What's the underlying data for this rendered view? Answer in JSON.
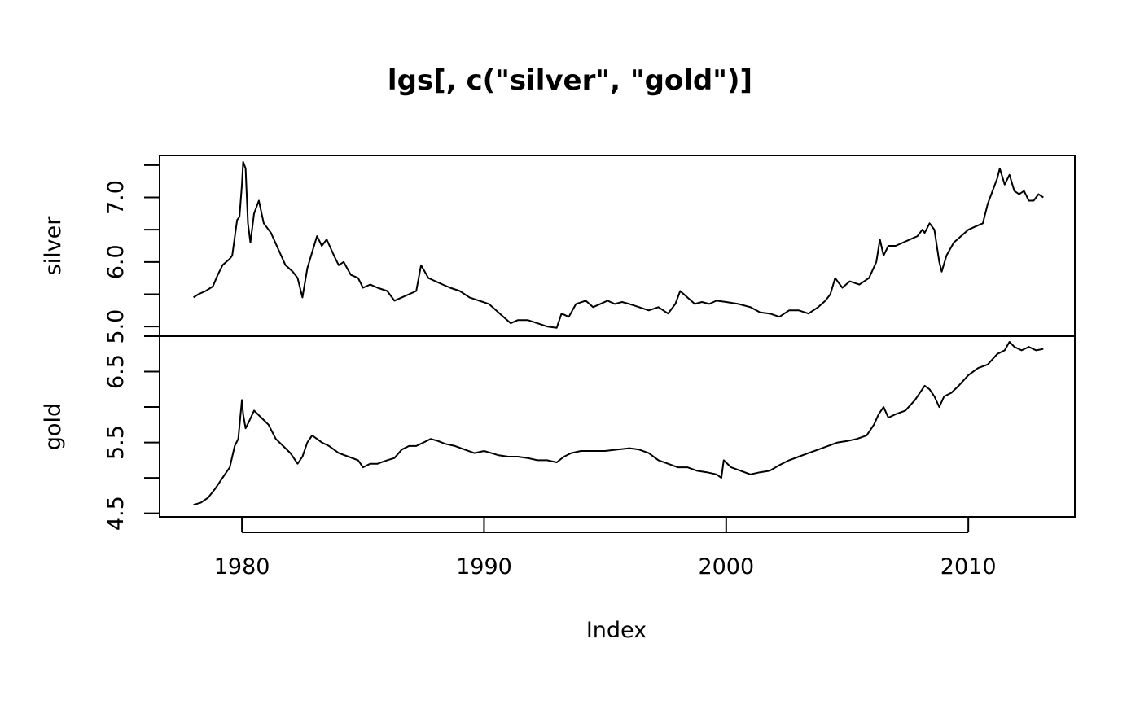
{
  "chart_data": {
    "type": "line",
    "title": "lgs[, c(\"silver\", \"gold\")]",
    "xlabel": "Index",
    "xlim": [
      1976.6,
      2014.4
    ],
    "x_ticks": [
      1980,
      1990,
      2000,
      2010
    ],
    "x_tick_labels": [
      "1980",
      "1990",
      "2000",
      "2010"
    ],
    "series": [
      {
        "name": "silver",
        "ylabel": "silver",
        "ylim": [
          4.85,
          7.65
        ],
        "y_ticks": [
          5.0,
          5.5,
          6.0,
          6.5,
          7.0,
          7.5
        ],
        "y_tick_labels": [
          "5.0",
          "6.0",
          "7.0"
        ],
        "x": [
          1978.0,
          1978.2,
          1978.5,
          1978.8,
          1979.0,
          1979.2,
          1979.5,
          1979.6,
          1979.8,
          1979.9,
          1980.0,
          1980.05,
          1980.15,
          1980.25,
          1980.35,
          1980.5,
          1980.7,
          1980.9,
          1981.2,
          1981.5,
          1981.8,
          1982.1,
          1982.3,
          1982.5,
          1982.7,
          1982.9,
          1983.1,
          1983.3,
          1983.5,
          1983.8,
          1984.0,
          1984.2,
          1984.5,
          1984.8,
          1985.0,
          1985.3,
          1985.6,
          1986.0,
          1986.3,
          1986.6,
          1986.9,
          1987.2,
          1987.4,
          1987.7,
          1988.0,
          1988.3,
          1988.6,
          1989.0,
          1989.4,
          1989.8,
          1990.2,
          1990.5,
          1990.8,
          1991.1,
          1991.4,
          1991.8,
          1992.2,
          1992.6,
          1993.0,
          1993.2,
          1993.5,
          1993.8,
          1994.2,
          1994.5,
          1994.8,
          1995.1,
          1995.4,
          1995.7,
          1996.0,
          1996.4,
          1996.8,
          1997.2,
          1997.6,
          1997.9,
          1998.1,
          1998.4,
          1998.7,
          1999.0,
          1999.3,
          1999.6,
          2000.0,
          2000.5,
          2001.0,
          2001.4,
          2001.8,
          2002.2,
          2002.6,
          2003.0,
          2003.4,
          2003.8,
          2004.1,
          2004.3,
          2004.5,
          2004.8,
          2005.1,
          2005.5,
          2005.9,
          2006.2,
          2006.35,
          2006.5,
          2006.7,
          2007.0,
          2007.3,
          2007.6,
          2007.9,
          2008.1,
          2008.2,
          2008.4,
          2008.6,
          2008.8,
          2008.9,
          2009.1,
          2009.4,
          2009.7,
          2010.0,
          2010.3,
          2010.6,
          2010.8,
          2011.0,
          2011.2,
          2011.3,
          2011.5,
          2011.7,
          2011.9,
          2012.1,
          2012.3,
          2012.5,
          2012.7,
          2012.9,
          2013.1
        ],
        "values": [
          5.45,
          5.5,
          5.55,
          5.62,
          5.8,
          5.95,
          6.05,
          6.1,
          6.65,
          6.7,
          7.2,
          7.55,
          7.45,
          6.6,
          6.3,
          6.75,
          6.95,
          6.6,
          6.45,
          6.2,
          5.95,
          5.85,
          5.75,
          5.45,
          5.9,
          6.15,
          6.4,
          6.25,
          6.35,
          6.1,
          5.95,
          6.0,
          5.8,
          5.75,
          5.6,
          5.65,
          5.6,
          5.55,
          5.4,
          5.45,
          5.5,
          5.55,
          5.95,
          5.75,
          5.7,
          5.65,
          5.6,
          5.55,
          5.45,
          5.4,
          5.35,
          5.25,
          5.15,
          5.05,
          5.1,
          5.1,
          5.05,
          5.0,
          4.98,
          5.2,
          5.15,
          5.35,
          5.4,
          5.3,
          5.35,
          5.4,
          5.35,
          5.38,
          5.35,
          5.3,
          5.25,
          5.3,
          5.2,
          5.35,
          5.55,
          5.45,
          5.35,
          5.38,
          5.35,
          5.4,
          5.38,
          5.35,
          5.3,
          5.22,
          5.2,
          5.15,
          5.25,
          5.25,
          5.2,
          5.3,
          5.4,
          5.5,
          5.75,
          5.6,
          5.7,
          5.65,
          5.75,
          6.0,
          6.35,
          6.1,
          6.25,
          6.25,
          6.3,
          6.35,
          6.4,
          6.5,
          6.45,
          6.6,
          6.5,
          6.0,
          5.85,
          6.1,
          6.3,
          6.4,
          6.5,
          6.55,
          6.6,
          6.9,
          7.1,
          7.3,
          7.45,
          7.2,
          7.35,
          7.1,
          7.05,
          7.1,
          6.95,
          6.95,
          7.05,
          7.0
        ]
      },
      {
        "name": "gold",
        "ylabel": "gold",
        "ylim": [
          4.45,
          7.0
        ],
        "y_ticks": [
          4.5,
          5.0,
          5.5,
          6.0,
          6.5,
          7.0
        ],
        "y_tick_labels": [
          "4.5",
          "5.5",
          "6.5"
        ],
        "x": [
          1978.0,
          1978.3,
          1978.6,
          1978.9,
          1979.2,
          1979.5,
          1979.7,
          1979.85,
          1980.0,
          1980.05,
          1980.15,
          1980.3,
          1980.5,
          1980.8,
          1981.1,
          1981.4,
          1981.7,
          1982.0,
          1982.3,
          1982.5,
          1982.7,
          1982.9,
          1983.1,
          1983.3,
          1983.6,
          1984.0,
          1984.4,
          1984.8,
          1985.0,
          1985.3,
          1985.6,
          1986.0,
          1986.3,
          1986.6,
          1986.9,
          1987.2,
          1987.5,
          1987.8,
          1988.1,
          1988.4,
          1988.8,
          1989.2,
          1989.6,
          1990.0,
          1990.3,
          1990.6,
          1991.0,
          1991.4,
          1991.8,
          1992.2,
          1992.6,
          1993.0,
          1993.3,
          1993.6,
          1994.0,
          1994.5,
          1995.0,
          1995.5,
          1996.0,
          1996.4,
          1996.8,
          1997.2,
          1997.6,
          1998.0,
          1998.4,
          1998.8,
          1999.2,
          1999.6,
          1999.8,
          1999.9,
          2000.2,
          2000.6,
          2001.0,
          2001.4,
          2001.8,
          2002.2,
          2002.6,
          2003.0,
          2003.4,
          2003.8,
          2004.2,
          2004.6,
          2005.0,
          2005.4,
          2005.8,
          2006.1,
          2006.3,
          2006.5,
          2006.7,
          2007.0,
          2007.4,
          2007.8,
          2008.0,
          2008.2,
          2008.4,
          2008.6,
          2008.8,
          2009.0,
          2009.3,
          2009.6,
          2010.0,
          2010.4,
          2010.8,
          2011.2,
          2011.5,
          2011.7,
          2011.9,
          2012.2,
          2012.5,
          2012.8,
          2013.1
        ],
        "values": [
          4.62,
          4.65,
          4.72,
          4.85,
          5.0,
          5.15,
          5.45,
          5.55,
          6.1,
          5.9,
          5.7,
          5.8,
          5.95,
          5.85,
          5.75,
          5.55,
          5.45,
          5.35,
          5.2,
          5.3,
          5.5,
          5.6,
          5.55,
          5.5,
          5.45,
          5.35,
          5.3,
          5.25,
          5.15,
          5.2,
          5.2,
          5.25,
          5.28,
          5.4,
          5.45,
          5.45,
          5.5,
          5.55,
          5.52,
          5.48,
          5.45,
          5.4,
          5.35,
          5.38,
          5.35,
          5.32,
          5.3,
          5.3,
          5.28,
          5.25,
          5.25,
          5.22,
          5.3,
          5.35,
          5.38,
          5.38,
          5.38,
          5.4,
          5.42,
          5.4,
          5.35,
          5.25,
          5.2,
          5.15,
          5.15,
          5.1,
          5.08,
          5.05,
          5.0,
          5.25,
          5.15,
          5.1,
          5.05,
          5.08,
          5.1,
          5.18,
          5.25,
          5.3,
          5.35,
          5.4,
          5.45,
          5.5,
          5.52,
          5.55,
          5.6,
          5.75,
          5.9,
          6.0,
          5.85,
          5.9,
          5.95,
          6.1,
          6.2,
          6.3,
          6.25,
          6.15,
          6.0,
          6.15,
          6.2,
          6.3,
          6.45,
          6.55,
          6.6,
          6.75,
          6.8,
          6.92,
          6.85,
          6.8,
          6.85,
          6.8,
          6.82
        ]
      }
    ]
  }
}
